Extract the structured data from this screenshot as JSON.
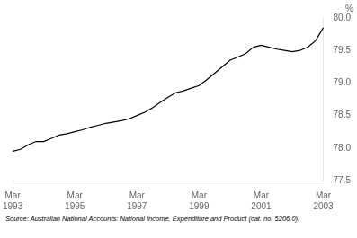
{
  "chart_data": {
    "type": "line",
    "ylabel": "%",
    "annotations": [
      "Source: Australian National Accounts: National Income, Expenditure and Product (cat. no. 5206.0)."
    ],
    "categories": [
      "Mar\n1993",
      null,
      null,
      null,
      null,
      null,
      null,
      null,
      "Mar\n1995",
      null,
      null,
      null,
      null,
      null,
      null,
      null,
      "Mar\n1997",
      null,
      null,
      null,
      null,
      null,
      null,
      null,
      "Mar\n1999",
      null,
      null,
      null,
      null,
      null,
      null,
      null,
      "Mar\n2001",
      null,
      null,
      null,
      null,
      null,
      null,
      null,
      "Mar\n2003"
    ],
    "values": [
      77.95,
      77.98,
      78.05,
      78.1,
      78.1,
      78.15,
      78.2,
      78.22,
      78.25,
      78.28,
      78.32,
      78.35,
      78.38,
      78.4,
      78.42,
      78.45,
      78.5,
      78.55,
      78.62,
      78.7,
      78.78,
      78.85,
      78.88,
      78.92,
      78.96,
      79.05,
      79.15,
      79.25,
      79.35,
      79.4,
      79.45,
      79.55,
      79.58,
      79.55,
      79.52,
      79.5,
      79.48,
      79.5,
      79.55,
      79.65,
      79.85
    ],
    "color": "#000000",
    "ylim": [
      77.5,
      80.0
    ],
    "yticks": [
      77.5,
      {
        "value": 78.0,
        "label": "78.0"
      },
      78.5,
      {
        "value": 79.0,
        "label": "79.0"
      },
      79.5,
      {
        "value": 80.0,
        "label": "80.0"
      }
    ],
    "grid": false,
    "legend": false
  }
}
